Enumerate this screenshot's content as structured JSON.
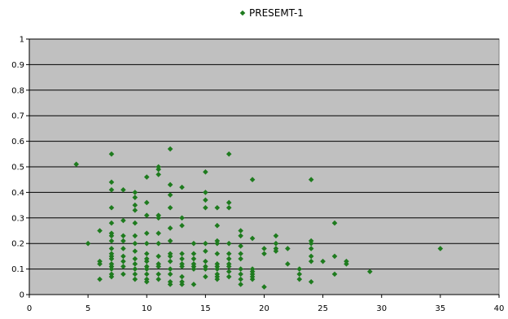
{
  "chart_data": {
    "type": "scatter",
    "title": "",
    "xlabel": "",
    "ylabel": "",
    "xlim": [
      0,
      40
    ],
    "ylim": [
      0,
      1
    ],
    "xticks": [
      "0",
      "5",
      "10",
      "15",
      "20",
      "25",
      "30",
      "35",
      "40"
    ],
    "yticks": [
      "0",
      "0.1",
      "0.2",
      "0.3",
      "0.4",
      "0.5",
      "0.6",
      "0.7",
      "0.8",
      "0.9",
      "1"
    ],
    "grid": true,
    "legend_position": "top-center",
    "plot_background": "#c0c0c0",
    "series": [
      {
        "name": "PRESEMT-1",
        "color": "#1e7b1e",
        "marker": "diamond",
        "points": [
          [
            4,
            0.51
          ],
          [
            5,
            0.2
          ],
          [
            6,
            0.25
          ],
          [
            6,
            0.13
          ],
          [
            6,
            0.12
          ],
          [
            6,
            0.06
          ],
          [
            7,
            0.55
          ],
          [
            7,
            0.44
          ],
          [
            7,
            0.41
          ],
          [
            7,
            0.34
          ],
          [
            7,
            0.28
          ],
          [
            7,
            0.24
          ],
          [
            7,
            0.23
          ],
          [
            7,
            0.21
          ],
          [
            7,
            0.18
          ],
          [
            7,
            0.16
          ],
          [
            7,
            0.15
          ],
          [
            7,
            0.14
          ],
          [
            7,
            0.12
          ],
          [
            7,
            0.11
          ],
          [
            7,
            0.1
          ],
          [
            7,
            0.08
          ],
          [
            7,
            0.07
          ],
          [
            8,
            0.41
          ],
          [
            8,
            0.29
          ],
          [
            8,
            0.23
          ],
          [
            8,
            0.21
          ],
          [
            8,
            0.18
          ],
          [
            8,
            0.15
          ],
          [
            8,
            0.13
          ],
          [
            8,
            0.11
          ],
          [
            8,
            0.08
          ],
          [
            9,
            0.4
          ],
          [
            9,
            0.38
          ],
          [
            9,
            0.35
          ],
          [
            9,
            0.33
          ],
          [
            9,
            0.28
          ],
          [
            9,
            0.23
          ],
          [
            9,
            0.2
          ],
          [
            9,
            0.17
          ],
          [
            9,
            0.14
          ],
          [
            9,
            0.12
          ],
          [
            9,
            0.1
          ],
          [
            9,
            0.08
          ],
          [
            9,
            0.06
          ],
          [
            10,
            0.46
          ],
          [
            10,
            0.36
          ],
          [
            10,
            0.31
          ],
          [
            10,
            0.24
          ],
          [
            10,
            0.2
          ],
          [
            10,
            0.16
          ],
          [
            10,
            0.14
          ],
          [
            10,
            0.13
          ],
          [
            10,
            0.11
          ],
          [
            10,
            0.1
          ],
          [
            10,
            0.08
          ],
          [
            10,
            0.06
          ],
          [
            10,
            0.05
          ],
          [
            11,
            0.5
          ],
          [
            11,
            0.49
          ],
          [
            11,
            0.47
          ],
          [
            11,
            0.31
          ],
          [
            11,
            0.3
          ],
          [
            11,
            0.24
          ],
          [
            11,
            0.2
          ],
          [
            11,
            0.15
          ],
          [
            11,
            0.12
          ],
          [
            11,
            0.11
          ],
          [
            11,
            0.08
          ],
          [
            11,
            0.06
          ],
          [
            12,
            0.57
          ],
          [
            12,
            0.43
          ],
          [
            12,
            0.39
          ],
          [
            12,
            0.34
          ],
          [
            12,
            0.26
          ],
          [
            12,
            0.21
          ],
          [
            12,
            0.16
          ],
          [
            12,
            0.15
          ],
          [
            12,
            0.13
          ],
          [
            12,
            0.1
          ],
          [
            12,
            0.08
          ],
          [
            12,
            0.05
          ],
          [
            12,
            0.04
          ],
          [
            13,
            0.42
          ],
          [
            13,
            0.3
          ],
          [
            13,
            0.27
          ],
          [
            13,
            0.16
          ],
          [
            13,
            0.14
          ],
          [
            13,
            0.12
          ],
          [
            13,
            0.11
          ],
          [
            13,
            0.07
          ],
          [
            13,
            0.05
          ],
          [
            13,
            0.04
          ],
          [
            14,
            0.2
          ],
          [
            14,
            0.16
          ],
          [
            14,
            0.14
          ],
          [
            14,
            0.12
          ],
          [
            14,
            0.11
          ],
          [
            14,
            0.1
          ],
          [
            14,
            0.04
          ],
          [
            15,
            0.48
          ],
          [
            15,
            0.4
          ],
          [
            15,
            0.37
          ],
          [
            15,
            0.34
          ],
          [
            15,
            0.2
          ],
          [
            15,
            0.17
          ],
          [
            15,
            0.13
          ],
          [
            15,
            0.11
          ],
          [
            15,
            0.1
          ],
          [
            15,
            0.07
          ],
          [
            16,
            0.34
          ],
          [
            16,
            0.27
          ],
          [
            16,
            0.21
          ],
          [
            16,
            0.2
          ],
          [
            16,
            0.16
          ],
          [
            16,
            0.12
          ],
          [
            16,
            0.11
          ],
          [
            16,
            0.1
          ],
          [
            16,
            0.08
          ],
          [
            16,
            0.07
          ],
          [
            16,
            0.06
          ],
          [
            17,
            0.55
          ],
          [
            17,
            0.36
          ],
          [
            17,
            0.34
          ],
          [
            17,
            0.2
          ],
          [
            17,
            0.16
          ],
          [
            17,
            0.14
          ],
          [
            17,
            0.12
          ],
          [
            17,
            0.11
          ],
          [
            17,
            0.09
          ],
          [
            17,
            0.07
          ],
          [
            18,
            0.25
          ],
          [
            18,
            0.23
          ],
          [
            18,
            0.19
          ],
          [
            18,
            0.16
          ],
          [
            18,
            0.14
          ],
          [
            18,
            0.1
          ],
          [
            18,
            0.08
          ],
          [
            18,
            0.06
          ],
          [
            18,
            0.04
          ],
          [
            19,
            0.45
          ],
          [
            19,
            0.22
          ],
          [
            19,
            0.1
          ],
          [
            19,
            0.09
          ],
          [
            19,
            0.08
          ],
          [
            19,
            0.07
          ],
          [
            19,
            0.06
          ],
          [
            20,
            0.18
          ],
          [
            20,
            0.16
          ],
          [
            20,
            0.03
          ],
          [
            21,
            0.23
          ],
          [
            21,
            0.2
          ],
          [
            21,
            0.18
          ],
          [
            21,
            0.17
          ],
          [
            22,
            0.18
          ],
          [
            22,
            0.12
          ],
          [
            23,
            0.1
          ],
          [
            23,
            0.08
          ],
          [
            23,
            0.06
          ],
          [
            24,
            0.45
          ],
          [
            24,
            0.21
          ],
          [
            24,
            0.2
          ],
          [
            24,
            0.18
          ],
          [
            24,
            0.15
          ],
          [
            24,
            0.13
          ],
          [
            24,
            0.05
          ],
          [
            25,
            0.13
          ],
          [
            26,
            0.28
          ],
          [
            26,
            0.15
          ],
          [
            26,
            0.08
          ],
          [
            27,
            0.13
          ],
          [
            27,
            0.12
          ],
          [
            29,
            0.09
          ],
          [
            35,
            0.18
          ]
        ]
      }
    ]
  }
}
